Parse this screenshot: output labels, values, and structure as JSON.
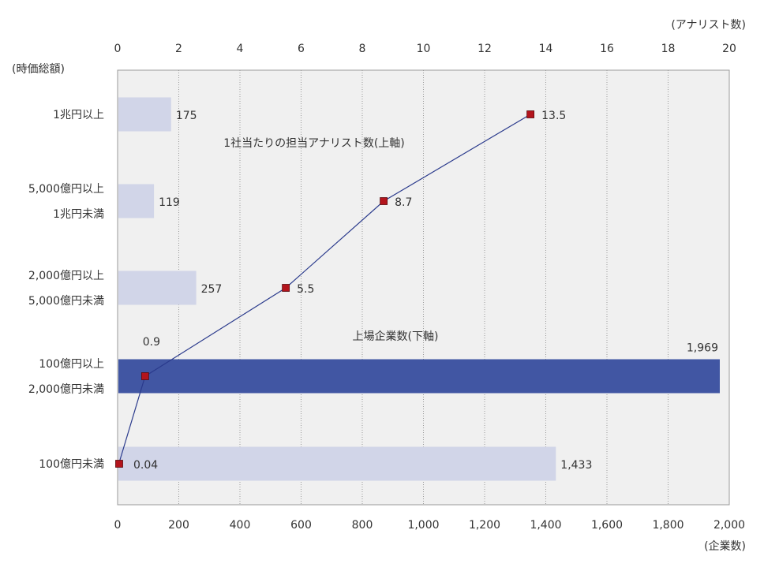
{
  "chart_data": {
    "type": "bar",
    "y_axis_label": "(時価総額)",
    "top_axis_unit": "(アナリスト数)",
    "bottom_axis_unit": "(企業数)",
    "top_axis": {
      "min": 0,
      "max": 20,
      "ticks": [
        "0",
        "2",
        "4",
        "6",
        "8",
        "10",
        "12",
        "14",
        "16",
        "18",
        "20"
      ]
    },
    "bottom_axis": {
      "min": 0,
      "max": 2000,
      "ticks": [
        "0",
        "200",
        "400",
        "600",
        "800",
        "1,000",
        "1,200",
        "1,400",
        "1,600",
        "1,800",
        "2,000"
      ]
    },
    "categories": [
      [
        "1兆円以上"
      ],
      [
        "5,000億円以上",
        "1兆円未満"
      ],
      [
        "2,000億円以上",
        "5,000億円未満"
      ],
      [
        "100億円以上",
        "2,000億円未満"
      ],
      [
        "100億円未満"
      ]
    ],
    "series": [
      {
        "name": "上場企業数(下軸)",
        "type": "bar",
        "axis": "bottom",
        "values": [
          175,
          119,
          257,
          1969,
          1433
        ],
        "labels": [
          "175",
          "119",
          "257",
          "1,969",
          "1,433"
        ],
        "highlight_index": 3
      },
      {
        "name": "1社当たりの担当アナリスト数(上軸)",
        "type": "line",
        "axis": "top",
        "values": [
          13.5,
          8.7,
          5.5,
          0.9,
          0.04
        ],
        "labels": [
          "13.5",
          "8.7",
          "5.5",
          "0.9",
          "0.04"
        ]
      }
    ],
    "colors": {
      "bar": "#d1d5e8",
      "bar_highlight": "#4156a3",
      "line": "#2a3a8c",
      "marker": "#b3141c",
      "plot_bg": "#f0f0f0",
      "grid": "#9a9a9a",
      "frame": "#9a9a9a"
    }
  }
}
